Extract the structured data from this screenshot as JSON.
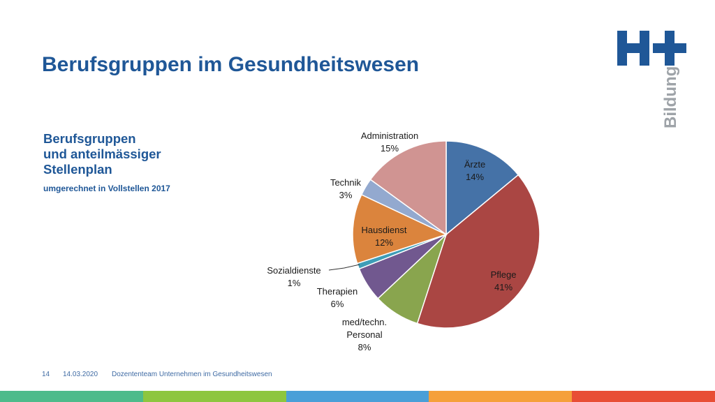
{
  "header": {
    "title": "Berufsgruppen im Gesundheitswesen",
    "logo_text": "H+",
    "logo_subtext": "Bildung"
  },
  "side": {
    "line1": "Berufsgruppen",
    "line2": "und anteilmässiger",
    "line3": "Stellenplan",
    "subline": "umgerechnet in Vollstellen 2017"
  },
  "chart_data": {
    "type": "pie",
    "title": "",
    "slices": [
      {
        "label": "Ärzte",
        "value": 14,
        "value_label": "14%",
        "color": "#4572a7"
      },
      {
        "label": "Pflege",
        "value": 41,
        "value_label": "41%",
        "color": "#aa4643"
      },
      {
        "label": "med/techn. Personal",
        "value": 8,
        "value_label": "8%",
        "color": "#89a54e"
      },
      {
        "label": "Therapien",
        "value": 6,
        "value_label": "6%",
        "color": "#71588f"
      },
      {
        "label": "Sozialdienste",
        "value": 1,
        "value_label": "1%",
        "color": "#3e9db7"
      },
      {
        "label": "Hausdienst",
        "value": 12,
        "value_label": "12%",
        "color": "#db843d"
      },
      {
        "label": "Technik",
        "value": 3,
        "value_label": "3%",
        "color": "#93a9cf"
      },
      {
        "label": "Administration",
        "value": 15,
        "value_label": "15%",
        "color": "#d09492"
      }
    ],
    "legend": "none"
  },
  "footer": {
    "page_number": "14",
    "date": "14.03.2020",
    "text": "Dozententeam Unternehmen im Gesundheitswesen"
  },
  "colors": {
    "brand_blue": "#1f5797",
    "stripe_colors": [
      "#4dbb8b",
      "#8dc63f",
      "#4a9fd8",
      "#f5a03a",
      "#e84e35"
    ]
  }
}
